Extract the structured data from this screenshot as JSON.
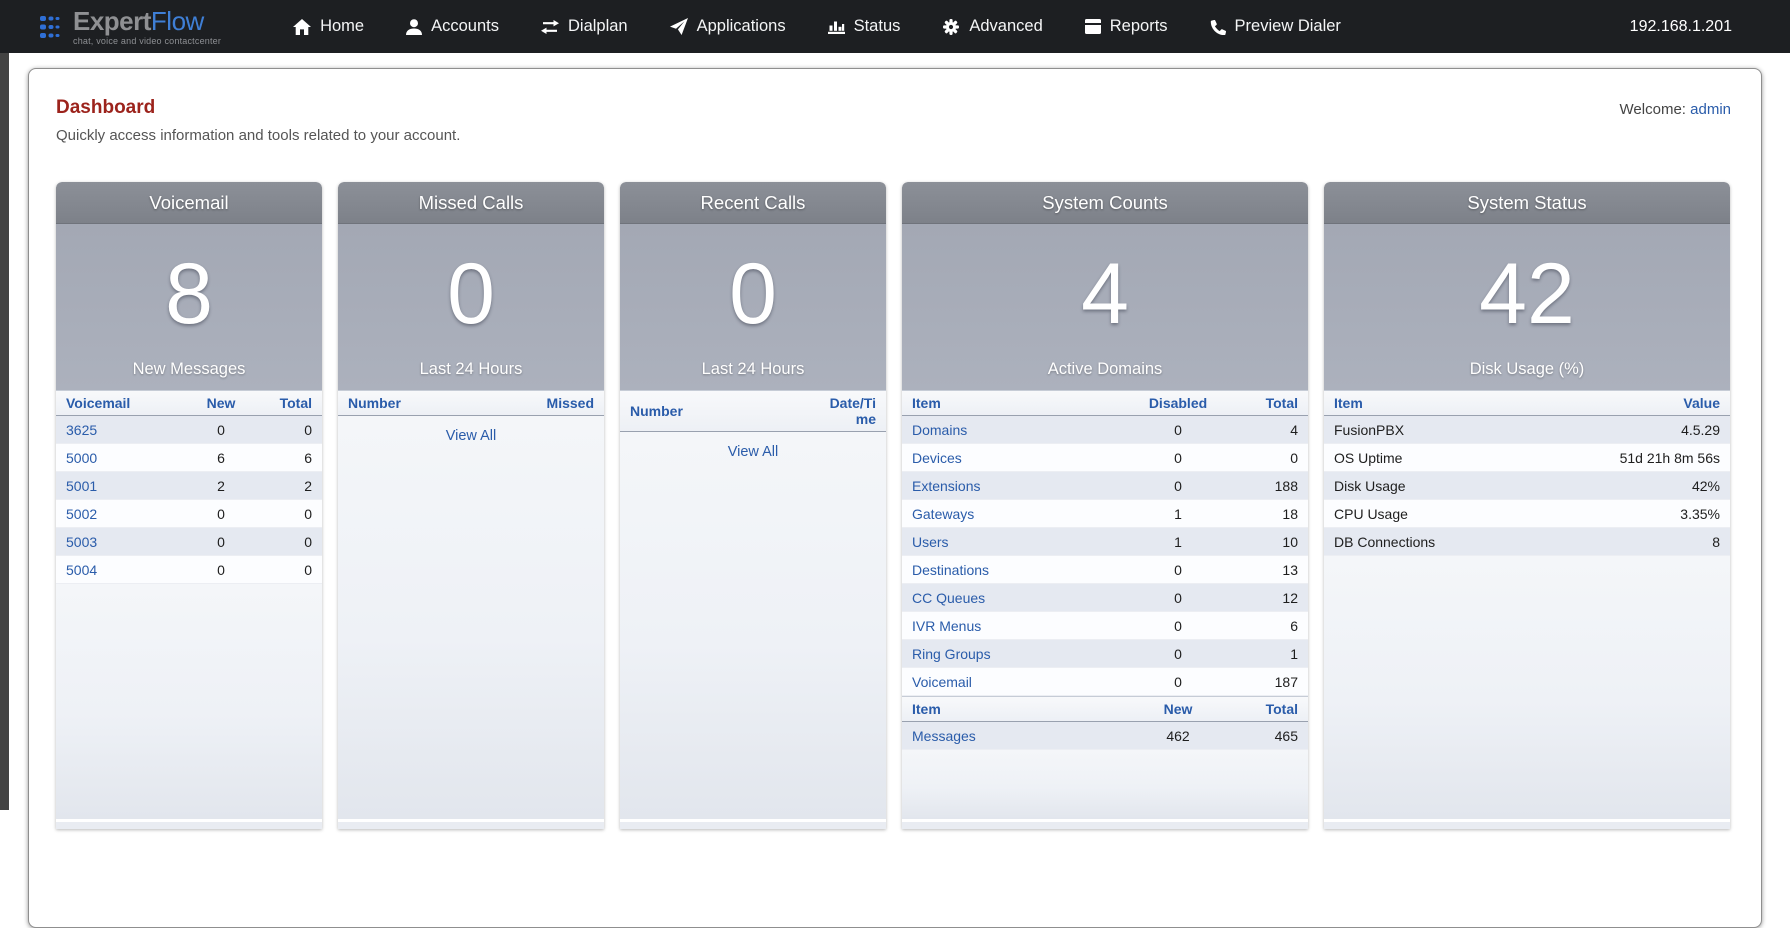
{
  "navbar": {
    "logo": {
      "brand_primary": "Expert",
      "brand_secondary": "Flow",
      "tagline": "chat, voice and video contactcenter"
    },
    "items": [
      {
        "label": "Home",
        "icon": "home-icon"
      },
      {
        "label": "Accounts",
        "icon": "user-icon"
      },
      {
        "label": "Dialplan",
        "icon": "transfer-arrows-icon"
      },
      {
        "label": "Applications",
        "icon": "paper-plane-icon"
      },
      {
        "label": "Status",
        "icon": "bar-chart-icon"
      },
      {
        "label": "Advanced",
        "icon": "gear-icon"
      },
      {
        "label": "Reports",
        "icon": "book-icon"
      },
      {
        "label": "Preview Dialer",
        "icon": "phone-icon"
      }
    ],
    "server_address": "192.168.1.201"
  },
  "page": {
    "title": "Dashboard",
    "subtitle": "Quickly access information and tools related to your account.",
    "welcome_label": "Welcome:",
    "welcome_user": "admin"
  },
  "panels": [
    {
      "title": "Voicemail",
      "stat_value": "8",
      "stat_label": "New Messages",
      "tables": [
        {
          "columns": [
            "Voicemail",
            "New",
            "Total"
          ],
          "first_col_links": true,
          "rows": [
            [
              "3625",
              "0",
              "0"
            ],
            [
              "5000",
              "6",
              "6"
            ],
            [
              "5001",
              "2",
              "2"
            ],
            [
              "5002",
              "0",
              "0"
            ],
            [
              "5003",
              "0",
              "0"
            ],
            [
              "5004",
              "0",
              "0"
            ]
          ]
        }
      ]
    },
    {
      "title": "Missed Calls",
      "stat_value": "0",
      "stat_label": "Last 24 Hours",
      "tables": [
        {
          "columns": [
            "Number",
            "Missed"
          ],
          "first_col_links": false,
          "rows": []
        }
      ],
      "view_all": "View All"
    },
    {
      "title": "Recent Calls",
      "stat_value": "0",
      "stat_label": "Last 24 Hours",
      "tables": [
        {
          "columns": [
            "Number",
            "Date/Time"
          ],
          "first_col_links": false,
          "rows": []
        }
      ],
      "view_all": "View All"
    },
    {
      "title": "System Counts",
      "stat_value": "4",
      "stat_label": "Active Domains",
      "tables": [
        {
          "columns": [
            "Item",
            "Disabled",
            "Total"
          ],
          "first_col_links": true,
          "rows": [
            [
              "Domains",
              "0",
              "4"
            ],
            [
              "Devices",
              "0",
              "0"
            ],
            [
              "Extensions",
              "0",
              "188"
            ],
            [
              "Gateways",
              "1",
              "18"
            ],
            [
              "Users",
              "1",
              "10"
            ],
            [
              "Destinations",
              "0",
              "13"
            ],
            [
              "CC Queues",
              "0",
              "12"
            ],
            [
              "IVR Menus",
              "0",
              "6"
            ],
            [
              "Ring Groups",
              "0",
              "1"
            ],
            [
              "Voicemail",
              "0",
              "187"
            ]
          ]
        },
        {
          "columns": [
            "Item",
            "New",
            "Total"
          ],
          "first_col_links": true,
          "rows": [
            [
              "Messages",
              "462",
              "465"
            ]
          ]
        }
      ]
    },
    {
      "title": "System Status",
      "stat_value": "42",
      "stat_label": "Disk Usage (%)",
      "tables": [
        {
          "columns": [
            "Item",
            "Value"
          ],
          "first_col_links": false,
          "rows": [
            [
              "FusionPBX",
              "4.5.29"
            ],
            [
              "OS Uptime",
              "51d 21h 8m 56s"
            ],
            [
              "Disk Usage",
              "42%"
            ],
            [
              "CPU Usage",
              "3.35%"
            ],
            [
              "DB Connections",
              "8"
            ]
          ]
        }
      ]
    }
  ],
  "colors": {
    "link": "#2a5caa",
    "page_title": "#9c231c",
    "navbar_bg": "#1d1f22",
    "panel_header_bg": "#84888f",
    "stat_bg": "#a7acb8",
    "row_shaded": "#e5e9f1"
  }
}
